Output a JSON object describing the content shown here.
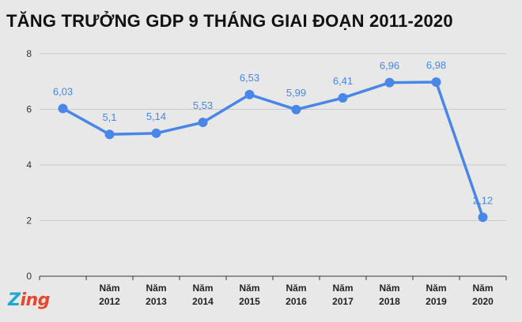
{
  "title": "TĂNG TRƯỞNG GDP 9 THÁNG GIAI ĐOẠN 2011-2020",
  "logo": {
    "part1": "Z",
    "part2": "ing"
  },
  "chart_data": {
    "type": "line",
    "categories": [
      "",
      "Năm 2012",
      "Năm 2013",
      "Năm 2014",
      "Năm 2015",
      "Năm 2016",
      "Năm 2017",
      "Năm 2018",
      "Năm 2019",
      "Năm 2020"
    ],
    "category_lines": [
      [
        "",
        ""
      ],
      [
        "Năm",
        "2012"
      ],
      [
        "Năm",
        "2013"
      ],
      [
        "Năm",
        "2014"
      ],
      [
        "Năm",
        "2015"
      ],
      [
        "Năm",
        "2016"
      ],
      [
        "Năm",
        "2017"
      ],
      [
        "Năm",
        "2018"
      ],
      [
        "Năm",
        "2019"
      ],
      [
        "Năm",
        "2020"
      ]
    ],
    "values": [
      6.03,
      5.1,
      5.14,
      5.53,
      6.53,
      5.99,
      6.41,
      6.96,
      6.98,
      2.12
    ],
    "data_labels": [
      "6,03",
      "5,1",
      "5,14",
      "5,53",
      "6,53",
      "5,99",
      "6,41",
      "6,96",
      "6,98",
      "2,12"
    ],
    "yticks": [
      "0",
      "2",
      "4",
      "6",
      "8"
    ],
    "ylim": [
      0,
      8
    ],
    "grid": true,
    "legend": "none",
    "colors": {
      "line": "#4a86e8",
      "label": "#4a86e8",
      "grid": "#c8c8c8",
      "axis": "#333333",
      "background": "#e8e8e8"
    }
  }
}
